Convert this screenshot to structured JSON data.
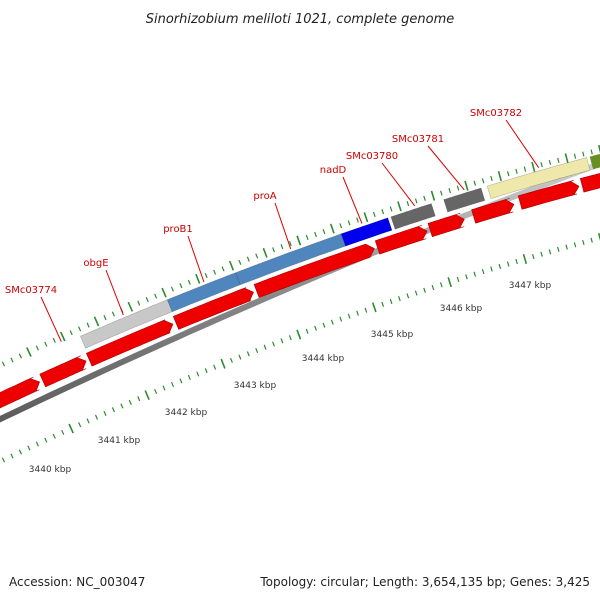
{
  "title": "Sinorhizobium meliloti 1021, complete genome",
  "footer": {
    "accession": "Accession: NC_003047",
    "topology": "Topology: circular; Length: 3,654,135 bp; Genes: 3,425"
  },
  "genes": [
    {
      "label": "SMc03774",
      "color": "#c8c8c8"
    },
    {
      "label": "obgE",
      "color": "#c8c8c8"
    },
    {
      "label": "proB1",
      "color": "#4f86bd"
    },
    {
      "label": "proA",
      "color": "#4f86bd"
    },
    {
      "label": "nadD",
      "color": "#0000ee"
    },
    {
      "label": "SMc03780",
      "color": "#666666"
    },
    {
      "label": "SMc03781",
      "color": "#666666"
    },
    {
      "label": "SMc03782",
      "color": "#eee8aa"
    }
  ],
  "extra_gene_color": "#6b8e23",
  "cds_color": "#ee0000",
  "tick_color": "#2e8b2e",
  "kbp_ticks": [
    "3440 kbp",
    "3441 kbp",
    "3442 kbp",
    "3443 kbp",
    "3444 kbp",
    "3445 kbp",
    "3446 kbp",
    "3447 kbp"
  ]
}
